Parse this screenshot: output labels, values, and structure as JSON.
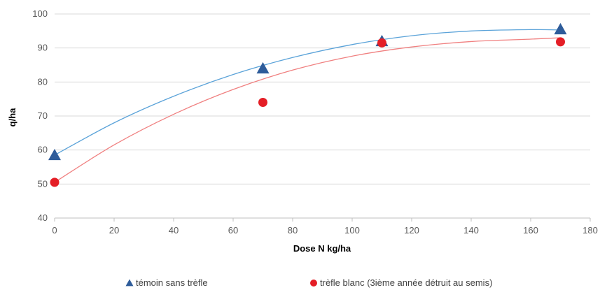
{
  "chart_data": {
    "type": "scatter",
    "xlabel": "Dose N kg/ha",
    "ylabel": "q/ha",
    "xlim": [
      0,
      180
    ],
    "ylim": [
      40,
      100
    ],
    "xticks": [
      0,
      20,
      40,
      60,
      80,
      100,
      120,
      140,
      160,
      180
    ],
    "yticks": [
      40,
      50,
      60,
      70,
      80,
      90,
      100
    ],
    "grid": "horizontal",
    "legend_position": "bottom",
    "series": [
      {
        "name": "témoin sans trèfle",
        "marker": "triangle",
        "color": "#2e5c9a",
        "trend_color": "#5ba3d9",
        "trendline": "polynomial",
        "points": [
          [
            0,
            58.5
          ],
          [
            70,
            84
          ],
          [
            110,
            92
          ],
          [
            170,
            95.5
          ]
        ],
        "trend": [
          [
            0,
            58.5
          ],
          [
            20,
            68
          ],
          [
            40,
            75.8
          ],
          [
            60,
            82.2
          ],
          [
            80,
            87.2
          ],
          [
            100,
            91
          ],
          [
            120,
            93.6
          ],
          [
            140,
            95
          ],
          [
            160,
            95.4
          ],
          [
            170,
            95.3
          ]
        ]
      },
      {
        "name": "trèfle blanc (3ième année détruit au semis)",
        "marker": "circle",
        "color": "#e41e26",
        "trend_color": "#f08080",
        "trendline": "polynomial",
        "points": [
          [
            0,
            50.5
          ],
          [
            70,
            74
          ],
          [
            110,
            91.5
          ],
          [
            170,
            91.8
          ]
        ],
        "trend": [
          [
            0,
            50.5
          ],
          [
            20,
            61.5
          ],
          [
            40,
            70.5
          ],
          [
            60,
            77.8
          ],
          [
            80,
            83.5
          ],
          [
            100,
            87.6
          ],
          [
            120,
            90.3
          ],
          [
            140,
            91.9
          ],
          [
            160,
            92.6
          ],
          [
            170,
            93
          ]
        ]
      }
    ]
  }
}
